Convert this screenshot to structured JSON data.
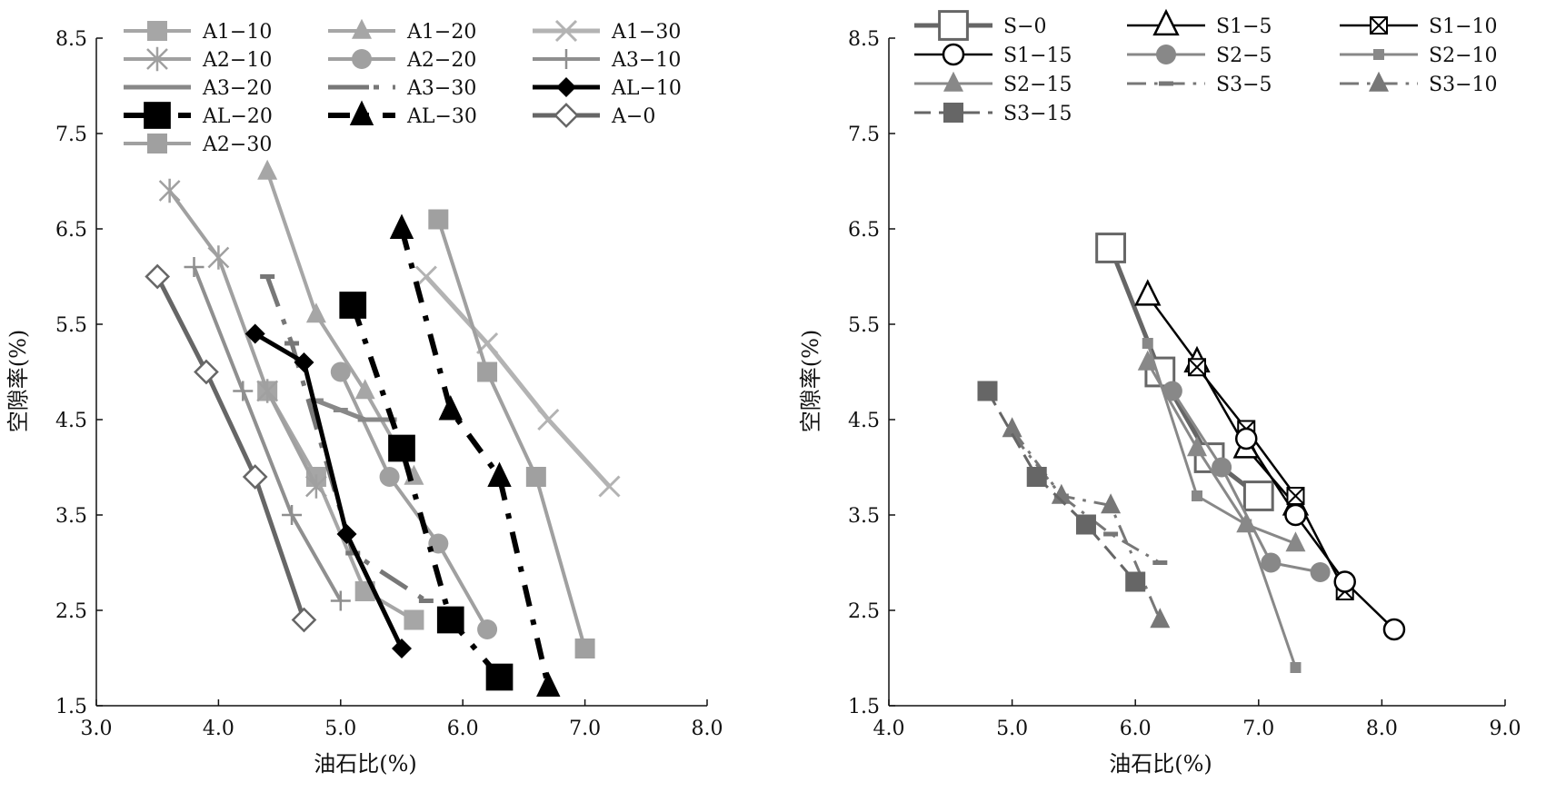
{
  "chart_data": [
    {
      "type": "line",
      "xlabel": "油石比(%)",
      "ylabel": "空隙率(%)",
      "xlim": [
        3.0,
        8.0
      ],
      "ylim": [
        1.5,
        8.5
      ],
      "xticks": [
        "3.0",
        "4.0",
        "5.0",
        "6.0",
        "7.0",
        "8.0"
      ],
      "yticks": [
        "1.5",
        "2.5",
        "3.5",
        "4.5",
        "5.5",
        "6.5",
        "7.5",
        "8.5"
      ],
      "legend_position": "top",
      "series": [
        {
          "name": "A1−10",
          "color": "#a6a6a6",
          "marker": "square",
          "dash": "solid",
          "width": 4,
          "points": [
            [
              4.4,
              4.8
            ],
            [
              4.8,
              3.9
            ],
            [
              5.2,
              2.7
            ],
            [
              5.6,
              2.4
            ]
          ]
        },
        {
          "name": "A1−20",
          "color": "#a6a6a6",
          "marker": "triangle",
          "dash": "solid",
          "width": 4,
          "points": [
            [
              4.4,
              7.1
            ],
            [
              4.8,
              5.6
            ],
            [
              5.2,
              4.8
            ],
            [
              5.6,
              3.9
            ]
          ]
        },
        {
          "name": "A1−30",
          "color": "#b3b3b3",
          "marker": "x",
          "dash": "solid",
          "width": 5,
          "points": [
            [
              5.7,
              6.0
            ],
            [
              6.2,
              5.3
            ],
            [
              6.7,
              4.5
            ],
            [
              7.2,
              3.8
            ]
          ]
        },
        {
          "name": "A2−10",
          "color": "#a0a0a0",
          "marker": "asterisk",
          "dash": "solid",
          "width": 4,
          "points": [
            [
              3.6,
              6.9
            ],
            [
              4.0,
              6.2
            ],
            [
              4.4,
              4.8
            ],
            [
              4.8,
              3.8
            ]
          ]
        },
        {
          "name": "A2−20",
          "color": "#a0a0a0",
          "marker": "circle",
          "dash": "solid",
          "width": 4,
          "points": [
            [
              5.0,
              5.0
            ],
            [
              5.4,
              3.9
            ],
            [
              5.8,
              3.2
            ],
            [
              6.2,
              2.3
            ]
          ]
        },
        {
          "name": "A3−10",
          "color": "#8f8f8f",
          "marker": "plus",
          "dash": "solid",
          "width": 4,
          "points": [
            [
              3.8,
              6.1
            ],
            [
              4.2,
              4.8
            ],
            [
              4.6,
              3.5
            ],
            [
              5.0,
              2.6
            ]
          ]
        },
        {
          "name": "A3−20",
          "color": "#888888",
          "marker": "dash",
          "dash": "solid",
          "width": 5,
          "points": [
            [
              4.8,
              4.7
            ],
            [
              5.0,
              4.6
            ],
            [
              5.2,
              4.5
            ],
            [
              5.4,
              4.5
            ]
          ]
        },
        {
          "name": "A3−30",
          "color": "#777777",
          "marker": "dash",
          "dash": "long-dash-dot",
          "width": 5,
          "points": [
            [
              4.4,
              6.0
            ],
            [
              4.6,
              5.3
            ],
            [
              5.1,
              3.1
            ],
            [
              5.7,
              2.6
            ]
          ]
        },
        {
          "name": "AL−10",
          "color": "#000000",
          "marker": "diamond-filled",
          "dash": "solid",
          "width": 5,
          "points": [
            [
              4.3,
              5.4
            ],
            [
              4.7,
              5.1
            ],
            [
              5.05,
              3.3
            ],
            [
              5.5,
              2.1
            ]
          ]
        },
        {
          "name": "AL−20",
          "color": "#000000",
          "marker": "square-filled",
          "dash": "dash-dot",
          "width": 6,
          "points": [
            [
              5.1,
              5.7
            ],
            [
              5.5,
              4.2
            ],
            [
              5.9,
              2.4
            ],
            [
              6.3,
              1.8
            ]
          ]
        },
        {
          "name": "AL−30",
          "color": "#000000",
          "marker": "triangle-filled",
          "dash": "dash-dot",
          "width": 6,
          "points": [
            [
              5.5,
              6.5
            ],
            [
              5.9,
              4.6
            ],
            [
              6.3,
              3.9
            ],
            [
              6.7,
              1.7
            ]
          ]
        },
        {
          "name": "A−0",
          "color": "#666666",
          "marker": "diamond-open",
          "dash": "solid",
          "width": 5,
          "points": [
            [
              3.5,
              6.0
            ],
            [
              3.9,
              5.0
            ],
            [
              4.3,
              3.9
            ],
            [
              4.7,
              2.4
            ]
          ]
        },
        {
          "name": "A2−30",
          "color": "#a0a0a0",
          "marker": "square",
          "dash": "solid",
          "width": 4,
          "points": [
            [
              5.8,
              6.6
            ],
            [
              6.2,
              5.0
            ],
            [
              6.6,
              3.9
            ],
            [
              7.0,
              2.1
            ]
          ]
        }
      ]
    },
    {
      "type": "line",
      "xlabel": "油石比(%)",
      "ylabel": "空隙率(%)",
      "xlim": [
        4.0,
        9.0
      ],
      "ylim": [
        1.5,
        8.5
      ],
      "xticks": [
        "4.0",
        "5.0",
        "6.0",
        "7.0",
        "8.0",
        "9.0"
      ],
      "yticks": [
        "1.5",
        "2.5",
        "3.5",
        "4.5",
        "5.5",
        "6.5",
        "7.5",
        "8.5"
      ],
      "legend_position": "top",
      "series": [
        {
          "name": "S−0",
          "color": "#666666",
          "marker": "square-open",
          "dash": "solid",
          "width": 5,
          "points": [
            [
              5.8,
              6.3
            ],
            [
              6.2,
              5.0
            ],
            [
              6.6,
              4.1
            ],
            [
              7.0,
              3.7
            ]
          ]
        },
        {
          "name": "S1−5",
          "color": "#000000",
          "marker": "triangle-open",
          "dash": "solid",
          "width": 2.5,
          "points": [
            [
              6.1,
              5.8
            ],
            [
              6.5,
              5.1
            ],
            [
              6.9,
              4.2
            ],
            [
              7.3,
              3.6
            ]
          ]
        },
        {
          "name": "S1−10",
          "color": "#000000",
          "marker": "xsquare",
          "dash": "solid",
          "width": 2.5,
          "points": [
            [
              6.5,
              5.05
            ],
            [
              6.9,
              4.4
            ],
            [
              7.3,
              3.7
            ],
            [
              7.7,
              2.7
            ]
          ]
        },
        {
          "name": "S1−15",
          "color": "#000000",
          "marker": "circle-open",
          "dash": "solid",
          "width": 2.5,
          "points": [
            [
              6.9,
              4.3
            ],
            [
              7.3,
              3.5
            ],
            [
              7.7,
              2.8
            ],
            [
              8.1,
              2.3
            ]
          ]
        },
        {
          "name": "S2−5",
          "color": "#888888",
          "marker": "circle",
          "dash": "solid",
          "width": 3,
          "points": [
            [
              6.3,
              4.8
            ],
            [
              6.7,
              4.0
            ],
            [
              7.1,
              3.0
            ],
            [
              7.5,
              2.9
            ]
          ]
        },
        {
          "name": "S2−10",
          "color": "#888888",
          "marker": "small-square",
          "dash": "solid",
          "width": 3,
          "points": [
            [
              6.1,
              5.3
            ],
            [
              6.5,
              3.7
            ],
            [
              6.9,
              3.4
            ],
            [
              7.3,
              1.9
            ]
          ]
        },
        {
          "name": "S2−15",
          "color": "#888888",
          "marker": "triangle",
          "dash": "solid",
          "width": 3,
          "points": [
            [
              6.1,
              5.1
            ],
            [
              6.5,
              4.2
            ],
            [
              6.9,
              3.4
            ],
            [
              7.3,
              3.2
            ]
          ]
        },
        {
          "name": "S3−5",
          "color": "#777777",
          "marker": "dash",
          "dash": "long-dash-dot",
          "width": 3,
          "points": [
            [
              5.0,
              4.35
            ],
            [
              5.4,
              3.7
            ],
            [
              5.8,
              3.3
            ],
            [
              6.2,
              3.0
            ]
          ]
        },
        {
          "name": "S3−10",
          "color": "#777777",
          "marker": "triangle",
          "dash": "long-dash-dot",
          "width": 3,
          "points": [
            [
              5.0,
              4.4
            ],
            [
              5.4,
              3.7
            ],
            [
              5.8,
              3.6
            ],
            [
              6.2,
              2.4
            ]
          ]
        },
        {
          "name": "S3−15",
          "color": "#666666",
          "marker": "square",
          "dash": "long-dash",
          "width": 3,
          "points": [
            [
              4.8,
              4.8
            ],
            [
              5.2,
              3.9
            ],
            [
              5.6,
              3.4
            ],
            [
              6.0,
              2.8
            ]
          ]
        }
      ]
    }
  ]
}
